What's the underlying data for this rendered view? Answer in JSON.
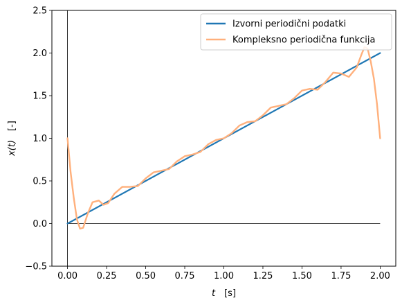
{
  "chart_data": {
    "type": "line",
    "xlabel_var": "t",
    "xlabel_unit": "[s]",
    "ylabel_var": "x(t)",
    "ylabel_unit": "[-]",
    "xlim": [
      -0.1,
      2.1
    ],
    "ylim": [
      -0.5,
      2.5
    ],
    "xticks": [
      "0.00",
      "0.25",
      "0.50",
      "0.75",
      "1.00",
      "1.25",
      "1.50",
      "1.75",
      "2.00"
    ],
    "yticks": [
      "−0.5",
      "0.0",
      "0.5",
      "1.0",
      "1.5",
      "2.0",
      "2.5"
    ],
    "xtick_values": [
      0,
      0.25,
      0.5,
      0.75,
      1.0,
      1.25,
      1.5,
      1.75,
      2.0
    ],
    "ytick_values": [
      -0.5,
      0,
      0.5,
      1.0,
      1.5,
      2.0,
      2.5
    ],
    "legend_position": "upper-right",
    "series": [
      {
        "name": "Izvorni periodični podatki",
        "color": "#1f77b4",
        "x": [
          0,
          2
        ],
        "y": [
          0,
          2
        ]
      },
      {
        "name": "Kompleksno periodična funkcija",
        "color": "#ffb07c",
        "x": [
          0.0,
          0.02,
          0.04,
          0.06,
          0.08,
          0.1,
          0.13,
          0.16,
          0.2,
          0.23,
          0.26,
          0.3,
          0.35,
          0.4,
          0.45,
          0.5,
          0.55,
          0.6,
          0.65,
          0.7,
          0.75,
          0.8,
          0.85,
          0.9,
          0.95,
          1.0,
          1.05,
          1.1,
          1.15,
          1.2,
          1.25,
          1.3,
          1.35,
          1.4,
          1.45,
          1.5,
          1.55,
          1.6,
          1.65,
          1.7,
          1.75,
          1.8,
          1.85,
          1.88,
          1.9,
          1.92,
          1.94,
          1.96,
          1.98,
          2.0
        ],
        "y": [
          1.0,
          0.6,
          0.3,
          0.05,
          -0.06,
          -0.05,
          0.12,
          0.25,
          0.27,
          0.22,
          0.24,
          0.35,
          0.43,
          0.43,
          0.44,
          0.53,
          0.6,
          0.62,
          0.64,
          0.73,
          0.79,
          0.81,
          0.84,
          0.93,
          0.98,
          1.0,
          1.06,
          1.15,
          1.19,
          1.2,
          1.27,
          1.36,
          1.38,
          1.4,
          1.47,
          1.56,
          1.58,
          1.57,
          1.66,
          1.77,
          1.76,
          1.72,
          1.83,
          1.98,
          2.07,
          2.05,
          1.9,
          1.7,
          1.4,
          1.0
        ]
      }
    ]
  }
}
